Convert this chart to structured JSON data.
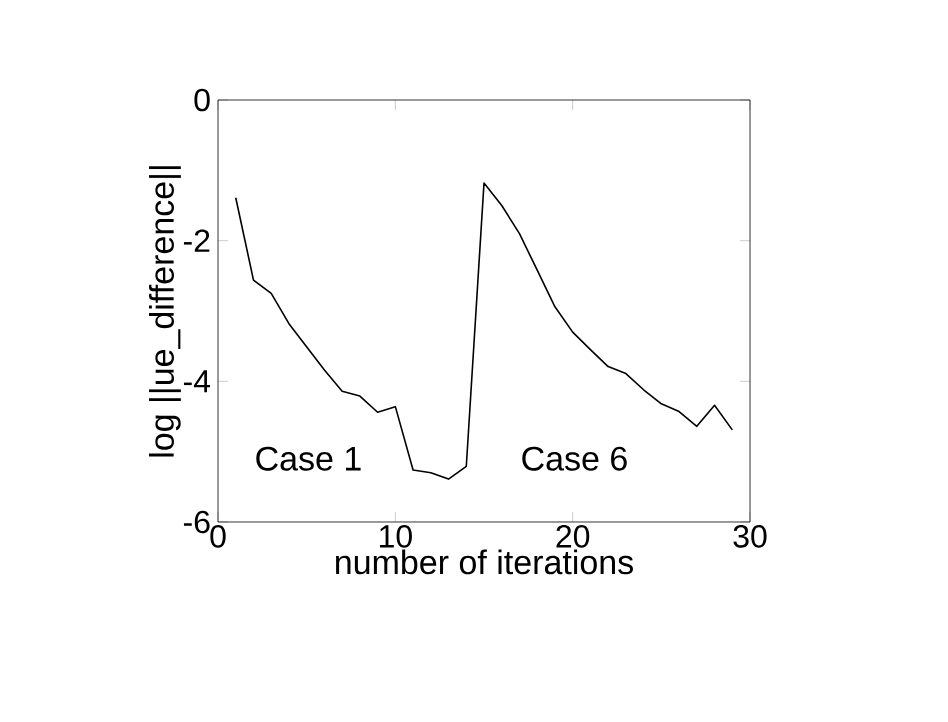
{
  "chart_data": {
    "type": "line",
    "xlabel": "number of iterations",
    "ylabel": "log ||ue_difference||",
    "x": [
      1,
      2,
      3,
      4,
      5,
      6,
      7,
      8,
      9,
      10,
      11,
      12,
      13,
      14,
      15,
      16,
      17,
      18,
      19,
      20,
      21,
      22,
      23,
      24,
      25,
      26,
      27,
      28,
      29
    ],
    "series": [
      {
        "color": "#000000",
        "values": [
          -1.39,
          -2.56,
          -2.75,
          -3.18,
          -3.51,
          -3.84,
          -4.14,
          -4.21,
          -4.44,
          -4.36,
          -5.26,
          -5.3,
          -5.39,
          -5.21,
          -1.18,
          -1.5,
          -1.9,
          -2.42,
          -2.94,
          -3.3,
          -3.55,
          -3.79,
          -3.89,
          -4.12,
          -4.32,
          -4.43,
          -4.64,
          -4.34,
          -4.69
        ]
      }
    ],
    "xlim": [
      0,
      30
    ],
    "ylim": [
      -6,
      0
    ],
    "xticks": [
      0,
      10,
      20,
      30
    ],
    "yticks": [
      -6,
      -4,
      -2,
      0
    ],
    "annotations": [
      "Case 1",
      "Case 6"
    ],
    "grid": false
  }
}
